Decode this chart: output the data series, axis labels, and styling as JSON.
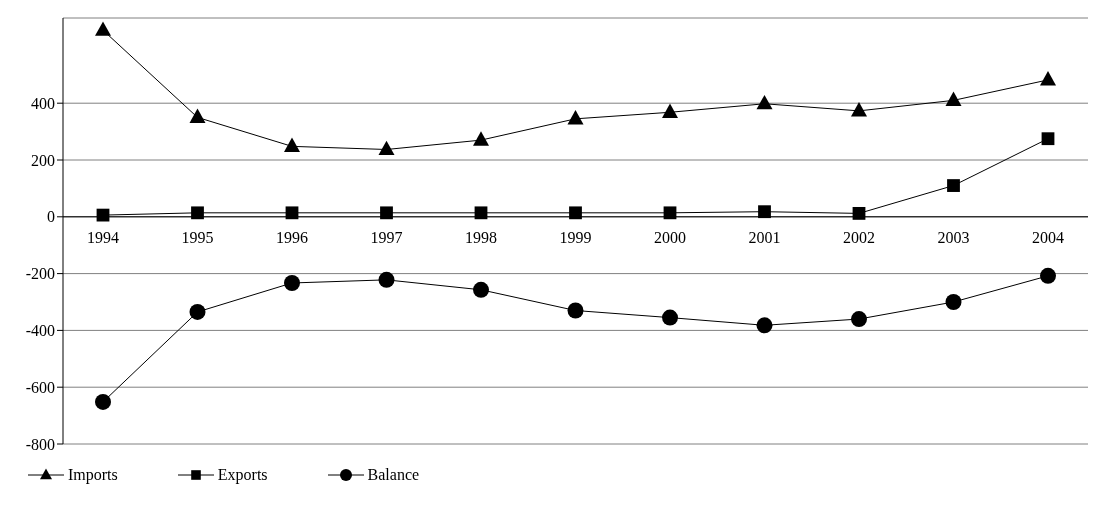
{
  "chart_data": {
    "type": "line",
    "categories": [
      "1994",
      "1995",
      "1996",
      "1997",
      "1998",
      "1999",
      "2000",
      "2001",
      "2002",
      "2003",
      "2004"
    ],
    "series": [
      {
        "name": "Imports",
        "color": "#000000",
        "marker": "triangle",
        "values": [
          657,
          350,
          248,
          237,
          270,
          345,
          368,
          398,
          373,
          410,
          482
        ]
      },
      {
        "name": "Exports",
        "color": "#000000",
        "marker": "square",
        "values": [
          6,
          14,
          14,
          14,
          14,
          14,
          14,
          18,
          12,
          110,
          275
        ]
      },
      {
        "name": "Balance",
        "color": "#000000",
        "marker": "circle",
        "values": [
          -652,
          -335,
          -233,
          -222,
          -257,
          -330,
          -355,
          -382,
          -360,
          -300,
          -208
        ]
      }
    ],
    "ylim": [
      -800,
      700
    ],
    "yticks": [
      -800,
      -600,
      -400,
      -200,
      0,
      200,
      400
    ],
    "grid": "y",
    "legend": "bottom left",
    "line_style": "solid"
  }
}
